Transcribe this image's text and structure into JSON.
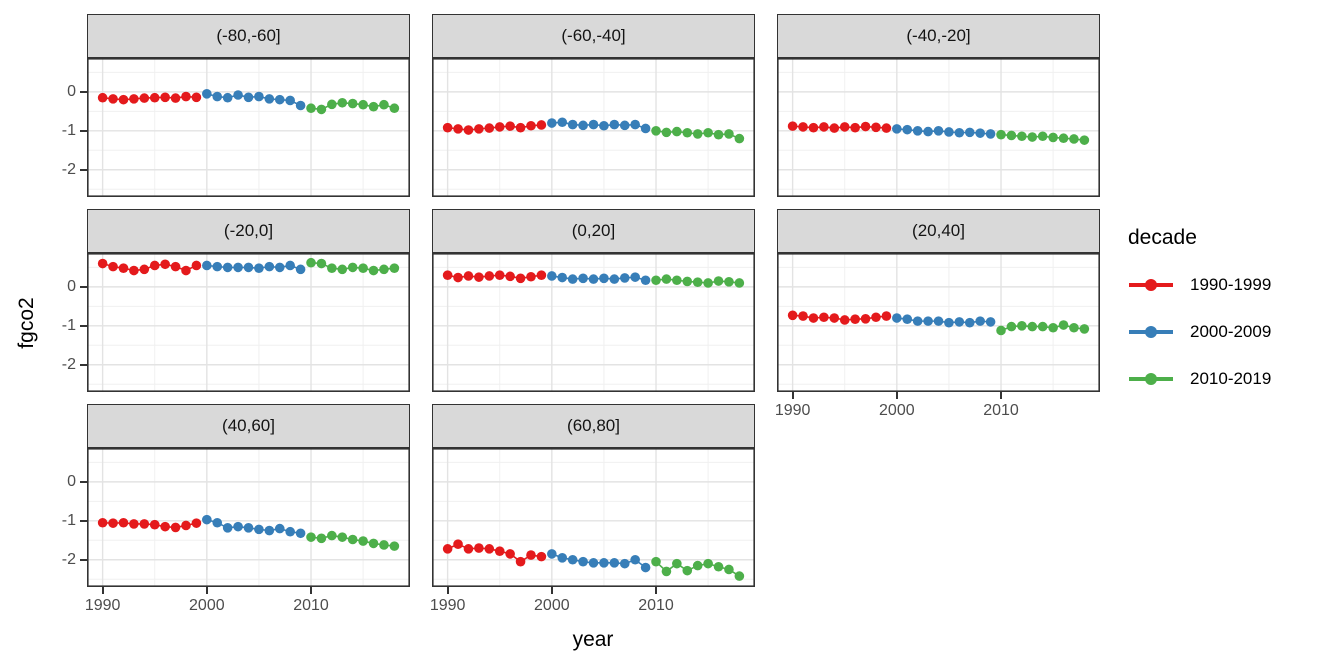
{
  "chart_data": {
    "type": "scatter",
    "description": "Faceted scatter/line plot of ocean CO2 flux (fgco2) by year for eight latitude bands, points colored by decade",
    "xlabel": "year",
    "ylabel": "fgco2",
    "x_ticks": [
      "1990",
      "2000",
      "2010"
    ],
    "y_ticks": [
      "0",
      "-1",
      "-2"
    ],
    "x_tick_values": [
      1990,
      2000,
      2010
    ],
    "y_tick_values": [
      0,
      -1,
      -2
    ],
    "x_minor_values": [
      1995,
      2005,
      2015
    ],
    "y_minor_values": [
      0.5,
      -0.5,
      -1.5,
      -2.5
    ],
    "xlim": [
      1988.5,
      2019.5
    ],
    "ylim": [
      -2.7,
      0.87
    ],
    "grid": true,
    "legend": {
      "title": "decade",
      "position": "right",
      "entries": [
        {
          "label": "1990-1999",
          "color": "#e41a1c"
        },
        {
          "label": "2000-2009",
          "color": "#377eb8"
        },
        {
          "label": "2010-2019",
          "color": "#4daf4a"
        }
      ]
    },
    "style": {
      "point_color_red": "#e41a1c",
      "point_color_blue": "#377eb8",
      "point_color_green": "#4daf4a",
      "strip_fill": "#d9d9d9",
      "panel_border": "#333333",
      "grid_major": "#e3e3e3",
      "grid_minor": "#f0f0f0",
      "tick_text": "#4d4d4d"
    },
    "facets": [
      {
        "label": "(-80,-60]",
        "series": [
          {
            "name": "1990-1999",
            "start_year": 1990,
            "values": [
              -0.15,
              -0.18,
              -0.2,
              -0.18,
              -0.16,
              -0.15,
              -0.14,
              -0.16,
              -0.12,
              -0.14
            ]
          },
          {
            "name": "2000-2009",
            "start_year": 2000,
            "values": [
              -0.05,
              -0.12,
              -0.15,
              -0.08,
              -0.14,
              -0.12,
              -0.18,
              -0.2,
              -0.22,
              -0.35
            ]
          },
          {
            "name": "2010-2019",
            "start_year": 2010,
            "values": [
              -0.42,
              -0.45,
              -0.32,
              -0.28,
              -0.3,
              -0.33,
              -0.38,
              -0.33,
              -0.42
            ]
          }
        ]
      },
      {
        "label": "(-60,-40]",
        "series": [
          {
            "name": "1990-1999",
            "start_year": 1990,
            "values": [
              -0.92,
              -0.95,
              -0.98,
              -0.95,
              -0.93,
              -0.9,
              -0.88,
              -0.92,
              -0.87,
              -0.85
            ]
          },
          {
            "name": "2000-2009",
            "start_year": 2000,
            "values": [
              -0.8,
              -0.78,
              -0.84,
              -0.86,
              -0.84,
              -0.87,
              -0.84,
              -0.86,
              -0.84,
              -0.94
            ]
          },
          {
            "name": "2010-2019",
            "start_year": 2010,
            "values": [
              -1.0,
              -1.04,
              -1.02,
              -1.05,
              -1.08,
              -1.05,
              -1.1,
              -1.08,
              -1.2
            ]
          }
        ]
      },
      {
        "label": "(-40,-20]",
        "series": [
          {
            "name": "1990-1999",
            "start_year": 1990,
            "values": [
              -0.88,
              -0.9,
              -0.92,
              -0.9,
              -0.93,
              -0.9,
              -0.92,
              -0.89,
              -0.91,
              -0.93
            ]
          },
          {
            "name": "2000-2009",
            "start_year": 2000,
            "values": [
              -0.95,
              -0.97,
              -1.0,
              -1.02,
              -1.0,
              -1.03,
              -1.05,
              -1.04,
              -1.06,
              -1.08
            ]
          },
          {
            "name": "2010-2019",
            "start_year": 2010,
            "values": [
              -1.1,
              -1.12,
              -1.14,
              -1.16,
              -1.14,
              -1.17,
              -1.19,
              -1.21,
              -1.24
            ]
          }
        ]
      },
      {
        "label": "(-20,0]",
        "series": [
          {
            "name": "1990-1999",
            "start_year": 1990,
            "values": [
              0.6,
              0.52,
              0.48,
              0.42,
              0.45,
              0.55,
              0.58,
              0.52,
              0.42,
              0.55
            ]
          },
          {
            "name": "2000-2009",
            "start_year": 2000,
            "values": [
              0.55,
              0.52,
              0.5,
              0.5,
              0.5,
              0.48,
              0.52,
              0.5,
              0.55,
              0.45
            ]
          },
          {
            "name": "2010-2019",
            "start_year": 2010,
            "values": [
              0.62,
              0.6,
              0.48,
              0.45,
              0.5,
              0.48,
              0.42,
              0.45,
              0.48
            ]
          }
        ]
      },
      {
        "label": "(0,20]",
        "series": [
          {
            "name": "1990-1999",
            "start_year": 1990,
            "values": [
              0.3,
              0.24,
              0.28,
              0.25,
              0.28,
              0.3,
              0.27,
              0.22,
              0.26,
              0.3
            ]
          },
          {
            "name": "2000-2009",
            "start_year": 2000,
            "values": [
              0.28,
              0.24,
              0.2,
              0.22,
              0.2,
              0.22,
              0.2,
              0.23,
              0.25,
              0.17
            ]
          },
          {
            "name": "2010-2019",
            "start_year": 2010,
            "values": [
              0.17,
              0.2,
              0.17,
              0.14,
              0.12,
              0.1,
              0.15,
              0.13,
              0.1
            ]
          }
        ]
      },
      {
        "label": "(20,40]",
        "series": [
          {
            "name": "1990-1999",
            "start_year": 1990,
            "values": [
              -0.73,
              -0.75,
              -0.8,
              -0.78,
              -0.8,
              -0.85,
              -0.83,
              -0.82,
              -0.78,
              -0.75
            ]
          },
          {
            "name": "2000-2009",
            "start_year": 2000,
            "values": [
              -0.8,
              -0.83,
              -0.88,
              -0.88,
              -0.88,
              -0.92,
              -0.9,
              -0.92,
              -0.88,
              -0.9
            ]
          },
          {
            "name": "2010-2019",
            "start_year": 2010,
            "values": [
              -1.12,
              -1.02,
              -1.0,
              -1.02,
              -1.02,
              -1.05,
              -0.98,
              -1.05,
              -1.08
            ]
          }
        ]
      },
      {
        "label": "(40,60]",
        "series": [
          {
            "name": "1990-1999",
            "start_year": 1990,
            "values": [
              -1.05,
              -1.06,
              -1.05,
              -1.08,
              -1.08,
              -1.1,
              -1.15,
              -1.17,
              -1.12,
              -1.06
            ]
          },
          {
            "name": "2000-2009",
            "start_year": 2000,
            "values": [
              -0.97,
              -1.05,
              -1.18,
              -1.15,
              -1.18,
              -1.22,
              -1.25,
              -1.2,
              -1.28,
              -1.32
            ]
          },
          {
            "name": "2010-2019",
            "start_year": 2010,
            "values": [
              -1.42,
              -1.45,
              -1.38,
              -1.42,
              -1.48,
              -1.52,
              -1.58,
              -1.62,
              -1.65
            ]
          }
        ]
      },
      {
        "label": "(60,80]",
        "series": [
          {
            "name": "1990-1999",
            "start_year": 1990,
            "values": [
              -1.72,
              -1.6,
              -1.72,
              -1.7,
              -1.72,
              -1.78,
              -1.85,
              -2.05,
              -1.88,
              -1.92
            ]
          },
          {
            "name": "2000-2009",
            "start_year": 2000,
            "values": [
              -1.85,
              -1.95,
              -2.0,
              -2.05,
              -2.08,
              -2.08,
              -2.08,
              -2.1,
              -2.0,
              -2.2
            ]
          },
          {
            "name": "2010-2019",
            "start_year": 2010,
            "values": [
              -2.05,
              -2.3,
              -2.1,
              -2.28,
              -2.15,
              -2.1,
              -2.18,
              -2.25,
              -2.42
            ]
          }
        ]
      }
    ]
  },
  "axis_titles": {
    "x": "year",
    "y": "fgco2"
  }
}
